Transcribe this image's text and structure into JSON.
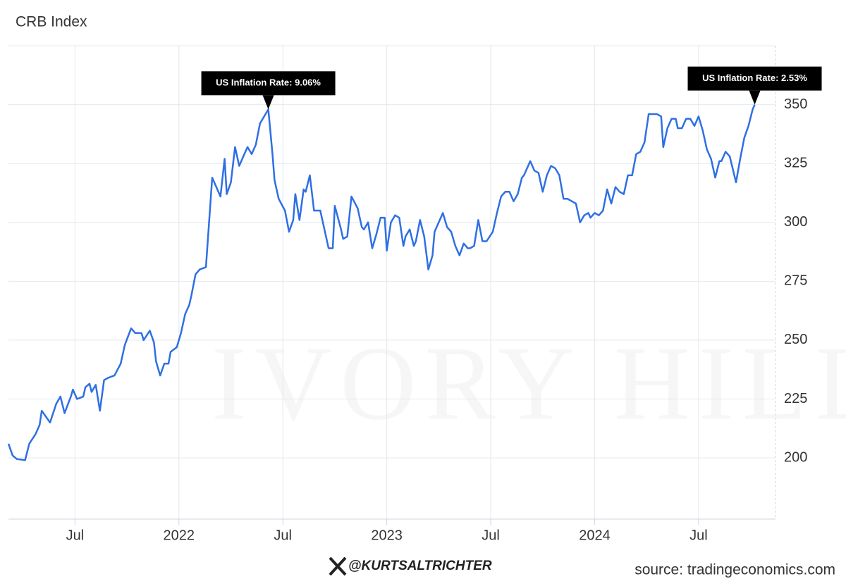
{
  "chart_data": {
    "type": "line",
    "title": "CRB Index",
    "x": [
      2021.18,
      2021.2,
      2021.22,
      2021.26,
      2021.28,
      2021.31,
      2021.33,
      2021.34,
      2021.38,
      2021.41,
      2021.43,
      2021.45,
      2021.48,
      2021.49,
      2021.51,
      2021.54,
      2021.55,
      2021.57,
      2021.58,
      2021.6,
      2021.62,
      2021.64,
      2021.66,
      2021.69,
      2021.72,
      2021.74,
      2021.77,
      2021.79,
      2021.82,
      2021.83,
      2021.86,
      2021.88,
      2021.89,
      2021.91,
      2021.93,
      2021.95,
      2021.96,
      2021.99,
      2022.01,
      2022.03,
      2022.05,
      2022.06,
      2022.08,
      2022.1,
      2022.13,
      2022.16,
      2022.18,
      2022.2,
      2022.22,
      2022.23,
      2022.25,
      2022.27,
      2022.29,
      2022.32,
      2022.33,
      2022.35,
      2022.37,
      2022.39,
      2022.41,
      2022.43,
      2022.45,
      2022.46,
      2022.48,
      2022.51,
      2022.53,
      2022.55,
      2022.56,
      2022.58,
      2022.6,
      2022.61,
      2022.63,
      2022.65,
      2022.68,
      2022.72,
      2022.74,
      2022.75,
      2022.78,
      2022.79,
      2022.81,
      2022.83,
      2022.86,
      2022.88,
      2022.89,
      2022.91,
      2022.93,
      2022.95,
      2022.97,
      2022.99,
      2023.0,
      2023.02,
      2023.04,
      2023.06,
      2023.08,
      2023.09,
      2023.11,
      2023.13,
      2023.14,
      2023.16,
      2023.18,
      2023.2,
      2023.22,
      2023.23,
      2023.25,
      2023.27,
      2023.29,
      2023.31,
      2023.33,
      2023.35,
      2023.37,
      2023.39,
      2023.4,
      2023.42,
      2023.44,
      2023.46,
      2023.48,
      2023.51,
      2023.53,
      2023.55,
      2023.57,
      2023.59,
      2023.61,
      2023.63,
      2023.65,
      2023.66,
      2023.69,
      2023.71,
      2023.73,
      2023.75,
      2023.77,
      2023.79,
      2023.81,
      2023.83,
      2023.85,
      2023.87,
      2023.89,
      2023.91,
      2023.93,
      2023.95,
      2023.97,
      2023.98,
      2024.0,
      2024.02,
      2024.04,
      2024.06,
      2024.08,
      2024.1,
      2024.12,
      2024.14,
      2024.16,
      2024.18,
      2024.2,
      2024.22,
      2024.24,
      2024.26,
      2024.28,
      2024.3,
      2024.32,
      2024.33,
      2024.35,
      2024.37,
      2024.39,
      2024.4,
      2024.42,
      2024.44,
      2024.46,
      2024.48,
      2024.5,
      2024.52,
      2024.54,
      2024.56,
      2024.58,
      2024.6,
      2024.61,
      2024.63,
      2024.65,
      2024.68,
      2024.7,
      2024.72,
      2024.74,
      2024.76,
      2024.77
    ],
    "values": [
      206,
      201,
      199.5,
      199,
      206,
      210,
      214,
      220,
      215,
      223,
      226,
      219,
      226,
      229,
      225,
      226,
      230,
      231.5,
      228,
      231,
      220,
      233,
      234,
      235,
      240,
      248,
      255,
      253,
      253,
      250,
      254,
      249,
      241,
      235,
      240,
      240,
      245,
      247,
      253,
      261,
      265,
      269,
      278,
      280,
      281,
      319,
      315,
      311,
      327,
      312,
      317,
      332,
      324,
      330,
      332,
      329,
      333,
      342,
      345,
      348,
      329,
      318,
      310,
      305,
      296,
      301,
      312,
      301,
      314,
      313,
      320,
      305,
      305,
      289,
      289,
      307,
      297,
      293,
      294,
      311,
      306,
      298,
      297,
      300,
      289,
      295,
      302,
      302,
      288,
      300,
      303,
      302,
      290,
      294,
      297,
      290,
      292,
      301,
      294,
      280,
      286,
      296,
      300,
      304,
      298,
      296,
      290,
      286,
      291,
      289,
      289,
      290,
      301,
      292,
      292,
      296,
      304,
      311,
      313,
      313,
      309,
      312,
      319,
      320,
      326,
      322,
      321,
      313,
      320,
      324,
      323,
      320,
      310,
      310,
      309,
      308,
      300,
      303,
      304,
      302,
      304,
      303,
      305,
      314,
      308,
      315,
      313,
      312,
      320,
      320,
      329,
      330,
      334,
      346,
      346,
      346,
      345,
      332,
      340,
      344,
      344,
      340,
      340,
      344,
      344,
      341,
      345,
      339,
      331,
      327,
      319,
      326,
      326,
      330,
      328,
      317,
      327,
      336,
      341,
      348,
      350
    ],
    "color": "#2f6fe4",
    "xlim": [
      2021.18,
      2024.87
    ],
    "xticks": [
      {
        "value": 2021.5,
        "label": "Jul"
      },
      2022,
      {
        "value": 2022.5,
        "label": "Jul"
      },
      2023,
      {
        "value": 2023.5,
        "label": "Jul"
      },
      2024,
      {
        "value": 2024.5,
        "label": "Jul"
      }
    ],
    "ylim": [
      174,
      375
    ],
    "yticks": [
      200,
      225,
      250,
      275,
      300,
      325,
      350
    ],
    "grid": true,
    "annotations": [
      {
        "text": "US Inflation Rate: 9.06%",
        "x": 2022.43,
        "y": 348
      },
      {
        "text": "US Inflation Rate: 2.53%",
        "x": 2024.77,
        "y": 350
      }
    ],
    "watermark": "IVORY HILL",
    "credit": "@KURTSALTRICHTER",
    "source": "source: tradingeconomics.com"
  }
}
